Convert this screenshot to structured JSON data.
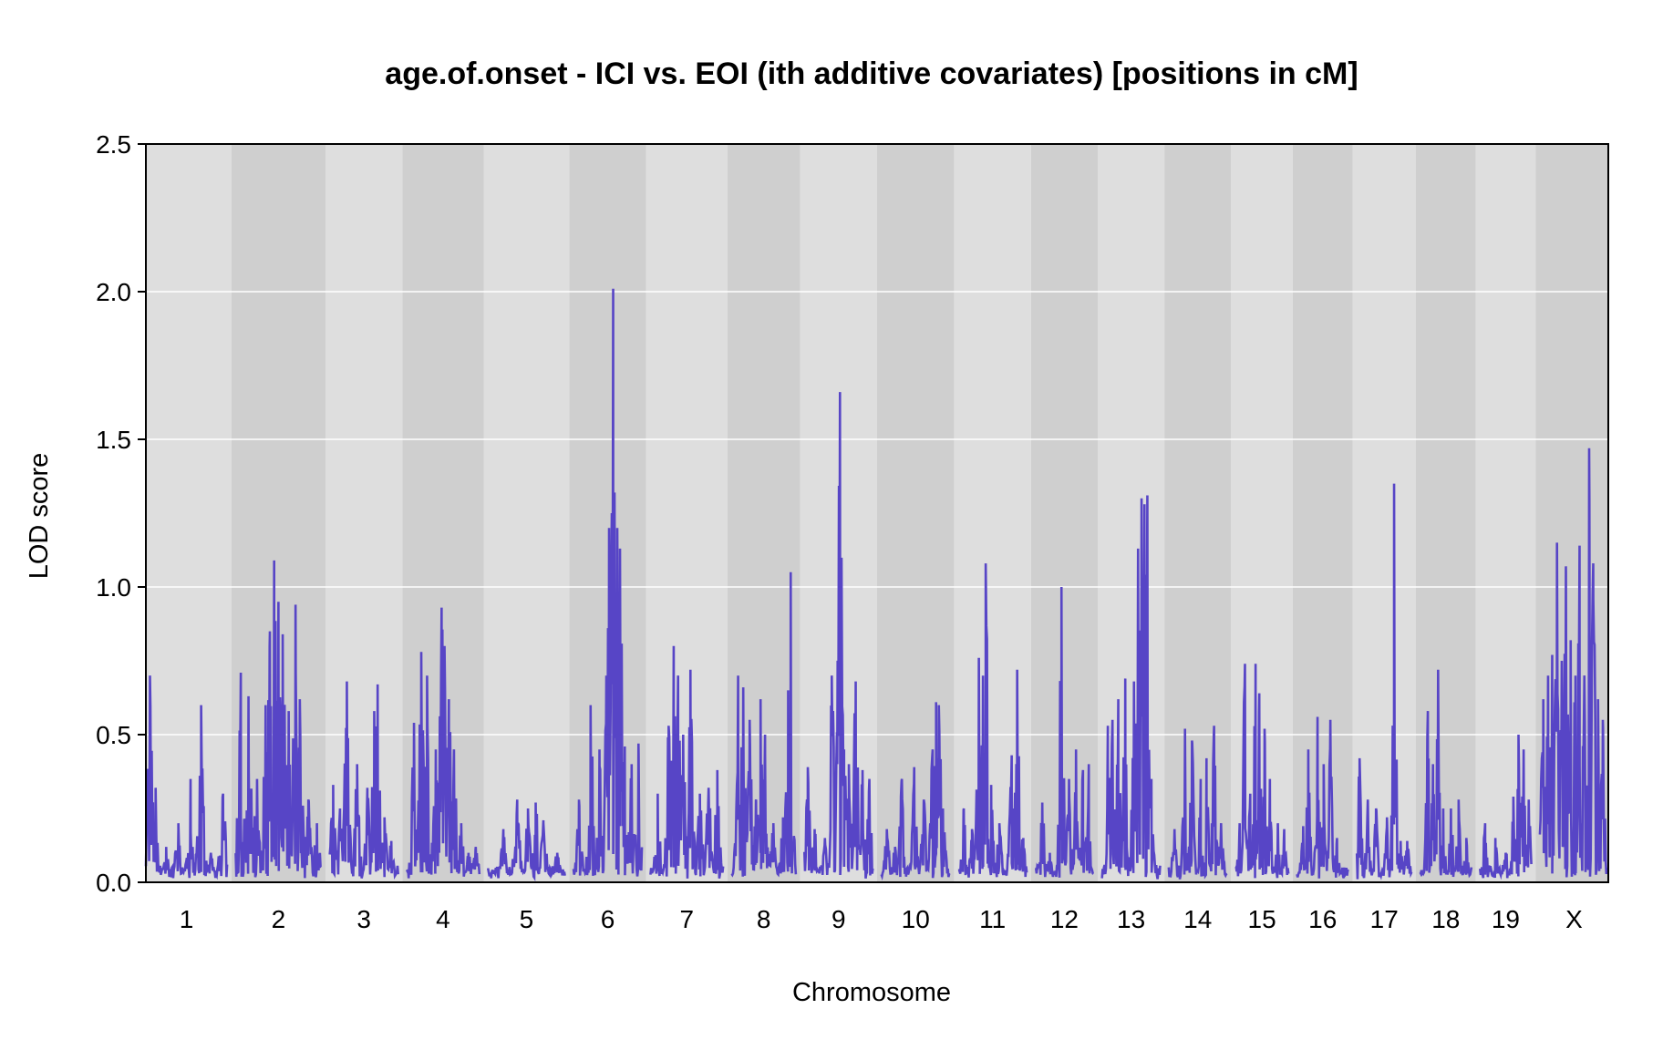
{
  "chart_data": {
    "type": "line",
    "title": "age.of.onset - ICI vs. EOI (ith additive covariates) [positions in cM]",
    "xlabel": "Chromosome",
    "ylabel": "LOD score",
    "ylim": [
      0,
      2.5
    ],
    "yticks": [
      "0.0",
      "0.5",
      "1.0",
      "1.5",
      "2.0",
      "2.5"
    ],
    "grid": true,
    "colors": {
      "line": "#5745c6",
      "band_light": "#dedede",
      "band_dark": "#cfcfcf",
      "gridline": "#ffffff"
    },
    "chromosomes": [
      {
        "label": "1",
        "peaks": [
          [
            0.05,
            0.7
          ],
          [
            0.12,
            0.32
          ],
          [
            0.25,
            0.12
          ],
          [
            0.4,
            0.2
          ],
          [
            0.55,
            0.35
          ],
          [
            0.68,
            0.6
          ],
          [
            0.8,
            0.1
          ],
          [
            0.95,
            0.3
          ]
        ]
      },
      {
        "label": "2",
        "peaks": [
          [
            0.06,
            0.71
          ],
          [
            0.15,
            0.63
          ],
          [
            0.25,
            0.35
          ],
          [
            0.35,
            0.6
          ],
          [
            0.4,
            0.85
          ],
          [
            0.45,
            1.09
          ],
          [
            0.5,
            0.95
          ],
          [
            0.55,
            0.84
          ],
          [
            0.62,
            0.58
          ],
          [
            0.7,
            0.94
          ],
          [
            0.75,
            0.62
          ],
          [
            0.85,
            0.28
          ],
          [
            0.95,
            0.2
          ]
        ]
      },
      {
        "label": "3",
        "peaks": [
          [
            0.05,
            0.33
          ],
          [
            0.15,
            0.25
          ],
          [
            0.25,
            0.68
          ],
          [
            0.4,
            0.4
          ],
          [
            0.55,
            0.32
          ],
          [
            0.65,
            0.58
          ],
          [
            0.7,
            0.67
          ],
          [
            0.8,
            0.22
          ],
          [
            0.9,
            0.14
          ]
        ]
      },
      {
        "label": "4",
        "peaks": [
          [
            0.1,
            0.54
          ],
          [
            0.2,
            0.78
          ],
          [
            0.28,
            0.7
          ],
          [
            0.4,
            0.45
          ],
          [
            0.48,
            0.93
          ],
          [
            0.52,
            0.8
          ],
          [
            0.58,
            0.62
          ],
          [
            0.65,
            0.45
          ],
          [
            0.75,
            0.2
          ],
          [
            0.85,
            0.1
          ],
          [
            0.95,
            0.12
          ]
        ]
      },
      {
        "label": "5",
        "peaks": [
          [
            0.2,
            0.18
          ],
          [
            0.38,
            0.28
          ],
          [
            0.52,
            0.25
          ],
          [
            0.62,
            0.27
          ],
          [
            0.72,
            0.21
          ],
          [
            0.9,
            0.1
          ]
        ]
      },
      {
        "label": "6",
        "peaks": [
          [
            0.08,
            0.28
          ],
          [
            0.25,
            0.6
          ],
          [
            0.38,
            0.45
          ],
          [
            0.48,
            0.7
          ],
          [
            0.52,
            1.2
          ],
          [
            0.56,
            1.25
          ],
          [
            0.58,
            2.01
          ],
          [
            0.6,
            1.32
          ],
          [
            0.64,
            1.2
          ],
          [
            0.68,
            1.13
          ],
          [
            0.75,
            0.46
          ],
          [
            0.85,
            0.4
          ],
          [
            0.95,
            0.47
          ]
        ]
      },
      {
        "label": "7",
        "peaks": [
          [
            0.1,
            0.3
          ],
          [
            0.25,
            0.53
          ],
          [
            0.32,
            0.8
          ],
          [
            0.38,
            0.7
          ],
          [
            0.45,
            0.5
          ],
          [
            0.55,
            0.72
          ],
          [
            0.68,
            0.3
          ],
          [
            0.8,
            0.32
          ],
          [
            0.92,
            0.38
          ]
        ]
      },
      {
        "label": "8",
        "peaks": [
          [
            0.1,
            0.7
          ],
          [
            0.18,
            0.66
          ],
          [
            0.28,
            0.55
          ],
          [
            0.38,
            0.28
          ],
          [
            0.45,
            0.62
          ],
          [
            0.52,
            0.5
          ],
          [
            0.65,
            0.2
          ],
          [
            0.8,
            0.22
          ],
          [
            0.88,
            0.65
          ],
          [
            0.92,
            1.05
          ]
        ]
      },
      {
        "label": "9",
        "peaks": [
          [
            0.05,
            0.39
          ],
          [
            0.15,
            0.18
          ],
          [
            0.3,
            0.15
          ],
          [
            0.4,
            0.7
          ],
          [
            0.48,
            0.4
          ],
          [
            0.52,
            1.66
          ],
          [
            0.58,
            0.45
          ],
          [
            0.65,
            0.4
          ],
          [
            0.75,
            0.68
          ],
          [
            0.85,
            0.38
          ],
          [
            0.95,
            0.35
          ]
        ]
      },
      {
        "label": "10",
        "peaks": [
          [
            0.08,
            0.18
          ],
          [
            0.2,
            0.12
          ],
          [
            0.3,
            0.35
          ],
          [
            0.48,
            0.39
          ],
          [
            0.62,
            0.28
          ],
          [
            0.75,
            0.45
          ],
          [
            0.8,
            0.61
          ],
          [
            0.84,
            0.6
          ],
          [
            0.9,
            0.25
          ]
        ]
      },
      {
        "label": "11",
        "peaks": [
          [
            0.08,
            0.25
          ],
          [
            0.2,
            0.18
          ],
          [
            0.3,
            0.76
          ],
          [
            0.36,
            0.7
          ],
          [
            0.4,
            1.08
          ],
          [
            0.48,
            0.33
          ],
          [
            0.6,
            0.2
          ],
          [
            0.78,
            0.43
          ],
          [
            0.86,
            0.72
          ],
          [
            0.95,
            0.15
          ]
        ]
      },
      {
        "label": "12",
        "peaks": [
          [
            0.12,
            0.27
          ],
          [
            0.25,
            0.1
          ],
          [
            0.45,
            1.0
          ],
          [
            0.58,
            0.35
          ],
          [
            0.7,
            0.45
          ],
          [
            0.82,
            0.38
          ],
          [
            0.92,
            0.4
          ]
        ]
      },
      {
        "label": "13",
        "peaks": [
          [
            0.1,
            0.53
          ],
          [
            0.18,
            0.55
          ],
          [
            0.28,
            0.62
          ],
          [
            0.4,
            0.69
          ],
          [
            0.55,
            0.68
          ],
          [
            0.62,
            1.13
          ],
          [
            0.68,
            1.3
          ],
          [
            0.73,
            1.28
          ],
          [
            0.78,
            1.31
          ],
          [
            0.85,
            0.35
          ]
        ]
      },
      {
        "label": "14",
        "peaks": [
          [
            0.1,
            0.18
          ],
          [
            0.28,
            0.52
          ],
          [
            0.4,
            0.48
          ],
          [
            0.55,
            0.35
          ],
          [
            0.65,
            0.42
          ],
          [
            0.78,
            0.53
          ],
          [
            0.9,
            0.2
          ]
        ]
      },
      {
        "label": "15",
        "peaks": [
          [
            0.08,
            0.2
          ],
          [
            0.18,
            0.74
          ],
          [
            0.28,
            0.3
          ],
          [
            0.38,
            0.74
          ],
          [
            0.45,
            0.64
          ],
          [
            0.55,
            0.52
          ],
          [
            0.65,
            0.35
          ],
          [
            0.8,
            0.2
          ],
          [
            0.92,
            0.18
          ]
        ]
      },
      {
        "label": "16",
        "peaks": [
          [
            0.12,
            0.19
          ],
          [
            0.22,
            0.45
          ],
          [
            0.4,
            0.56
          ],
          [
            0.52,
            0.4
          ],
          [
            0.65,
            0.55
          ],
          [
            0.78,
            0.15
          ],
          [
            0.92,
            0.05
          ]
        ]
      },
      {
        "label": "17",
        "peaks": [
          [
            0.05,
            0.42
          ],
          [
            0.2,
            0.28
          ],
          [
            0.35,
            0.25
          ],
          [
            0.55,
            0.22
          ],
          [
            0.68,
            1.35
          ],
          [
            0.8,
            0.14
          ],
          [
            0.92,
            0.14
          ]
        ]
      },
      {
        "label": "18",
        "peaks": [
          [
            0.15,
            0.58
          ],
          [
            0.25,
            0.4
          ],
          [
            0.35,
            0.72
          ],
          [
            0.45,
            0.25
          ],
          [
            0.6,
            0.25
          ],
          [
            0.75,
            0.28
          ],
          [
            0.9,
            0.15
          ]
        ]
      },
      {
        "label": "19",
        "peaks": [
          [
            0.1,
            0.2
          ],
          [
            0.3,
            0.15
          ],
          [
            0.5,
            0.1
          ],
          [
            0.65,
            0.29
          ],
          [
            0.75,
            0.5
          ],
          [
            0.85,
            0.45
          ],
          [
            0.95,
            0.28
          ]
        ]
      },
      {
        "label": "X",
        "peaks": [
          [
            0.05,
            0.62
          ],
          [
            0.12,
            0.7
          ],
          [
            0.18,
            0.77
          ],
          [
            0.25,
            1.15
          ],
          [
            0.32,
            0.75
          ],
          [
            0.38,
            1.07
          ],
          [
            0.45,
            0.82
          ],
          [
            0.52,
            0.7
          ],
          [
            0.58,
            1.14
          ],
          [
            0.65,
            0.7
          ],
          [
            0.72,
            1.47
          ],
          [
            0.78,
            1.08
          ],
          [
            0.85,
            0.62
          ],
          [
            0.92,
            0.55
          ]
        ]
      }
    ]
  }
}
